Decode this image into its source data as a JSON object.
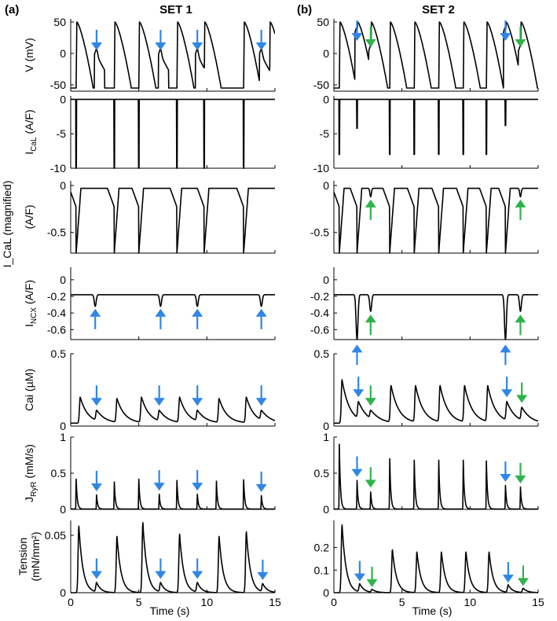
{
  "figure": {
    "panel_a_label": "(a)",
    "panel_b_label": "(b)",
    "set1_title": "SET 1",
    "set2_title": "SET 2",
    "xlabel": "Time (s)",
    "shared_ylabel": "I_CaL (magnified)",
    "colors": {
      "trace": "#000000",
      "blue_arrow": "#2f86e6",
      "green_arrow": "#2db34a"
    }
  },
  "chart_data": [
    {
      "type": "line",
      "column": "SET 1",
      "row": 1,
      "ylabel": "V (mV)",
      "ylim": [
        -60,
        55
      ],
      "yticks": [
        -50,
        0,
        50
      ],
      "xlim": [
        0,
        15
      ],
      "xticks": [],
      "beats": [
        0.4,
        3.2,
        5.0,
        7.8,
        9.8,
        12.7,
        14.6
      ],
      "markers": [
        {
          "t": 1.9,
          "v": 5,
          "color": "blue",
          "dir": "down"
        },
        {
          "t": 6.6,
          "v": 5,
          "color": "blue",
          "dir": "down"
        },
        {
          "t": 9.3,
          "v": 5,
          "color": "blue",
          "dir": "down"
        },
        {
          "t": 14.0,
          "v": 5,
          "color": "blue",
          "dir": "down"
        }
      ]
    },
    {
      "type": "line",
      "column": "SET 1",
      "row": 2,
      "ylabel": "I_CaL (A/F)",
      "ylim": [
        -10,
        0.5
      ],
      "yticks": [
        -10,
        -5,
        0
      ],
      "xlim": [
        0,
        15
      ],
      "xticks": [],
      "spikes": [
        {
          "t": 0.4,
          "v": -10
        },
        {
          "t": 3.2,
          "v": -10
        },
        {
          "t": 5.0,
          "v": -10
        },
        {
          "t": 7.8,
          "v": -10
        },
        {
          "t": 9.8,
          "v": -10
        },
        {
          "t": 12.7,
          "v": -10
        }
      ]
    },
    {
      "type": "line",
      "column": "SET 1",
      "row": 3,
      "ylabel": "(A/F)",
      "ylim": [
        -0.72,
        0.05
      ],
      "yticks": [
        -0.5,
        0
      ],
      "xlim": [
        0,
        15
      ],
      "xticks": [],
      "beats": [
        0.4,
        3.2,
        5.0,
        7.8,
        9.8,
        12.7
      ]
    },
    {
      "type": "line",
      "column": "SET 1",
      "row": 4,
      "ylabel": "I_NCX (A/F)",
      "ylim": [
        -0.72,
        0.15
      ],
      "yticks": [
        -0.6,
        -0.4,
        -0.2,
        0
      ],
      "xlim": [
        0,
        15
      ],
      "xticks": [],
      "beats": [
        0.4,
        3.2,
        5.0,
        7.8,
        9.8,
        12.7
      ],
      "dips": [
        {
          "t": 1.8,
          "v": -0.32
        },
        {
          "t": 6.6,
          "v": -0.32
        },
        {
          "t": 9.3,
          "v": -0.32
        },
        {
          "t": 14.0,
          "v": -0.32
        }
      ],
      "markers": [
        {
          "t": 1.8,
          "v": -0.35,
          "color": "blue",
          "dir": "up"
        },
        {
          "t": 6.6,
          "v": -0.35,
          "color": "blue",
          "dir": "up"
        },
        {
          "t": 9.3,
          "v": -0.35,
          "color": "blue",
          "dir": "up"
        },
        {
          "t": 14.0,
          "v": -0.35,
          "color": "blue",
          "dir": "up"
        }
      ]
    },
    {
      "type": "line",
      "column": "SET 1",
      "row": 5,
      "ylabel": "Cai (µM)",
      "ylim": [
        0,
        0.5
      ],
      "yticks": [
        0,
        0.5
      ],
      "xlim": [
        0,
        15
      ],
      "xticks": [],
      "peaks": [
        {
          "t": 0.7,
          "v": 0.2
        },
        {
          "t": 1.9,
          "v": 0.11
        },
        {
          "t": 3.4,
          "v": 0.19
        },
        {
          "t": 5.2,
          "v": 0.2
        },
        {
          "t": 6.5,
          "v": 0.11
        },
        {
          "t": 8.0,
          "v": 0.2
        },
        {
          "t": 9.3,
          "v": 0.11
        },
        {
          "t": 10.9,
          "v": 0.19
        },
        {
          "t": 12.9,
          "v": 0.2
        },
        {
          "t": 14.0,
          "v": 0.11
        }
      ],
      "markers": [
        {
          "t": 1.9,
          "v": 0.14,
          "color": "blue",
          "dir": "down"
        },
        {
          "t": 6.5,
          "v": 0.14,
          "color": "blue",
          "dir": "down"
        },
        {
          "t": 9.3,
          "v": 0.14,
          "color": "blue",
          "dir": "down"
        },
        {
          "t": 14.0,
          "v": 0.14,
          "color": "blue",
          "dir": "down"
        }
      ]
    },
    {
      "type": "line",
      "column": "SET 1",
      "row": 6,
      "ylabel": "J_RyR (mM/s)",
      "ylim": [
        0,
        1
      ],
      "yticks": [
        0,
        0.5,
        1
      ],
      "xlim": [
        0,
        15
      ],
      "xticks": [],
      "peaks": [
        {
          "t": 0.4,
          "v": 0.42
        },
        {
          "t": 1.9,
          "v": 0.2
        },
        {
          "t": 3.2,
          "v": 0.38
        },
        {
          "t": 5.0,
          "v": 0.42
        },
        {
          "t": 6.5,
          "v": 0.21
        },
        {
          "t": 7.8,
          "v": 0.4
        },
        {
          "t": 9.3,
          "v": 0.21
        },
        {
          "t": 10.7,
          "v": 0.39
        },
        {
          "t": 12.7,
          "v": 0.41
        },
        {
          "t": 14.0,
          "v": 0.19
        }
      ],
      "markers": [
        {
          "t": 1.9,
          "v": 0.25,
          "color": "blue",
          "dir": "down"
        },
        {
          "t": 6.5,
          "v": 0.26,
          "color": "blue",
          "dir": "down"
        },
        {
          "t": 9.3,
          "v": 0.26,
          "color": "blue",
          "dir": "down"
        },
        {
          "t": 14.0,
          "v": 0.24,
          "color": "blue",
          "dir": "down"
        }
      ]
    },
    {
      "type": "line",
      "column": "SET 1",
      "row": 7,
      "ylabel": "Tension (mN/mm²)",
      "ylim": [
        0,
        0.063
      ],
      "yticks": [
        0,
        0.05
      ],
      "xlim": [
        0,
        15
      ],
      "xticks": [
        0,
        5,
        10,
        15
      ],
      "xlabel": "Time (s)",
      "peaks": [
        {
          "t": 0.6,
          "v": 0.058
        },
        {
          "t": 1.9,
          "v": 0.009
        },
        {
          "t": 3.4,
          "v": 0.049
        },
        {
          "t": 5.3,
          "v": 0.061
        },
        {
          "t": 6.6,
          "v": 0.009
        },
        {
          "t": 8.0,
          "v": 0.051
        },
        {
          "t": 9.3,
          "v": 0.009
        },
        {
          "t": 10.9,
          "v": 0.049
        },
        {
          "t": 12.9,
          "v": 0.053
        },
        {
          "t": 14.1,
          "v": 0.008
        }
      ],
      "markers": [
        {
          "t": 1.9,
          "v": 0.012,
          "color": "blue",
          "dir": "down"
        },
        {
          "t": 6.6,
          "v": 0.012,
          "color": "blue",
          "dir": "down"
        },
        {
          "t": 9.3,
          "v": 0.012,
          "color": "blue",
          "dir": "down"
        },
        {
          "t": 14.1,
          "v": 0.011,
          "color": "blue",
          "dir": "down"
        }
      ]
    },
    {
      "type": "line",
      "column": "SET 2",
      "row": 1,
      "ylabel": "",
      "ylim": [
        -60,
        55
      ],
      "yticks": [
        -50,
        0,
        50
      ],
      "xlim": [
        0,
        15
      ],
      "xticks": [],
      "beats": [
        0.4,
        1.7,
        2.7,
        4.1,
        5.9,
        7.7,
        9.5,
        11.2,
        12.6,
        13.7
      ],
      "markers": [
        {
          "t": 1.7,
          "v": 40,
          "color": "blue",
          "dir": "down"
        },
        {
          "t": 2.7,
          "v": 10,
          "color": "green",
          "dir": "down"
        },
        {
          "t": 12.6,
          "v": 40,
          "color": "blue",
          "dir": "down"
        },
        {
          "t": 13.7,
          "v": 10,
          "color": "green",
          "dir": "down"
        }
      ]
    },
    {
      "type": "line",
      "column": "SET 2",
      "row": 2,
      "ylabel": "",
      "ylim": [
        -10,
        0.5
      ],
      "yticks": [
        -10,
        -5,
        0
      ],
      "xlim": [
        0,
        15
      ],
      "xticks": [],
      "spikes": [
        {
          "t": 0.4,
          "v": -8
        },
        {
          "t": 1.7,
          "v": -4.2
        },
        {
          "t": 4.1,
          "v": -8
        },
        {
          "t": 5.9,
          "v": -8
        },
        {
          "t": 7.7,
          "v": -8
        },
        {
          "t": 9.5,
          "v": -8
        },
        {
          "t": 11.2,
          "v": -8
        },
        {
          "t": 12.6,
          "v": -3.8
        }
      ]
    },
    {
      "type": "line",
      "column": "SET 2",
      "row": 3,
      "ylabel": "",
      "ylim": [
        -0.72,
        0.05
      ],
      "yticks": [
        -0.5,
        0
      ],
      "xlim": [
        0,
        15
      ],
      "xticks": [],
      "beats": [
        0.4,
        1.7,
        4.1,
        5.9,
        7.7,
        9.5,
        11.2,
        12.6
      ],
      "dips": [
        {
          "t": 2.7,
          "v": -0.12
        },
        {
          "t": 13.7,
          "v": -0.12
        }
      ],
      "markers": [
        {
          "t": 2.7,
          "v": -0.15,
          "color": "green",
          "dir": "up"
        },
        {
          "t": 13.7,
          "v": -0.15,
          "color": "green",
          "dir": "up"
        }
      ]
    },
    {
      "type": "line",
      "column": "SET 2",
      "row": 4,
      "ylabel": "",
      "ylim": [
        -0.72,
        0.15
      ],
      "yticks": [
        -0.6,
        -0.4,
        -0.2,
        0
      ],
      "xlim": [
        0,
        15
      ],
      "xticks": [],
      "beats": [
        0.4,
        4.1,
        5.9,
        7.7,
        9.5,
        11.2
      ],
      "dips": [
        {
          "t": 1.7,
          "v": -0.72
        },
        {
          "t": 2.7,
          "v": -0.38
        },
        {
          "t": 12.6,
          "v": -0.72
        },
        {
          "t": 13.7,
          "v": -0.38
        }
      ],
      "markers": [
        {
          "t": 1.7,
          "v": -0.78,
          "color": "blue",
          "dir": "up"
        },
        {
          "t": 2.7,
          "v": -0.42,
          "color": "green",
          "dir": "up"
        },
        {
          "t": 12.6,
          "v": -0.78,
          "color": "blue",
          "dir": "up"
        },
        {
          "t": 13.7,
          "v": -0.42,
          "color": "green",
          "dir": "up"
        }
      ]
    },
    {
      "type": "line",
      "column": "SET 2",
      "row": 5,
      "ylabel": "",
      "ylim": [
        0,
        0.5
      ],
      "yticks": [
        0,
        0.5
      ],
      "xlim": [
        0,
        15
      ],
      "xticks": [],
      "peaks": [
        {
          "t": 0.6,
          "v": 0.32
        },
        {
          "t": 1.8,
          "v": 0.17
        },
        {
          "t": 2.7,
          "v": 0.11
        },
        {
          "t": 4.2,
          "v": 0.28
        },
        {
          "t": 6.0,
          "v": 0.28
        },
        {
          "t": 7.8,
          "v": 0.28
        },
        {
          "t": 9.6,
          "v": 0.28
        },
        {
          "t": 11.3,
          "v": 0.28
        },
        {
          "t": 12.7,
          "v": 0.17
        },
        {
          "t": 13.8,
          "v": 0.13
        }
      ],
      "markers": [
        {
          "t": 1.8,
          "v": 0.2,
          "color": "blue",
          "dir": "down"
        },
        {
          "t": 2.7,
          "v": 0.14,
          "color": "green",
          "dir": "down"
        },
        {
          "t": 12.7,
          "v": 0.2,
          "color": "blue",
          "dir": "down"
        },
        {
          "t": 13.8,
          "v": 0.16,
          "color": "green",
          "dir": "down"
        }
      ]
    },
    {
      "type": "line",
      "column": "SET 2",
      "row": 6,
      "ylabel": "",
      "ylim": [
        0,
        1
      ],
      "yticks": [
        0,
        0.5,
        1
      ],
      "xlim": [
        0,
        15
      ],
      "xticks": [],
      "peaks": [
        {
          "t": 0.4,
          "v": 0.9
        },
        {
          "t": 1.7,
          "v": 0.4
        },
        {
          "t": 2.7,
          "v": 0.24
        },
        {
          "t": 4.1,
          "v": 0.7
        },
        {
          "t": 5.9,
          "v": 0.68
        },
        {
          "t": 7.7,
          "v": 0.68
        },
        {
          "t": 9.5,
          "v": 0.68
        },
        {
          "t": 11.2,
          "v": 0.67
        },
        {
          "t": 12.6,
          "v": 0.33
        },
        {
          "t": 13.7,
          "v": 0.31
        }
      ],
      "markers": [
        {
          "t": 1.7,
          "v": 0.45,
          "color": "blue",
          "dir": "down"
        },
        {
          "t": 2.7,
          "v": 0.3,
          "color": "green",
          "dir": "down"
        },
        {
          "t": 12.6,
          "v": 0.38,
          "color": "blue",
          "dir": "down"
        },
        {
          "t": 13.7,
          "v": 0.36,
          "color": "green",
          "dir": "down"
        }
      ]
    },
    {
      "type": "line",
      "column": "SET 2",
      "row": 7,
      "ylabel": "",
      "ylim": [
        0,
        0.32
      ],
      "yticks": [
        0,
        0.1,
        0.2
      ],
      "xlim": [
        0,
        15
      ],
      "xticks": [
        0,
        5,
        10,
        15
      ],
      "xlabel": "Time (s)",
      "peaks": [
        {
          "t": 0.6,
          "v": 0.3
        },
        {
          "t": 1.9,
          "v": 0.04
        },
        {
          "t": 2.8,
          "v": 0.015
        },
        {
          "t": 4.3,
          "v": 0.19
        },
        {
          "t": 6.1,
          "v": 0.18
        },
        {
          "t": 7.9,
          "v": 0.18
        },
        {
          "t": 9.7,
          "v": 0.18
        },
        {
          "t": 11.4,
          "v": 0.18
        },
        {
          "t": 12.8,
          "v": 0.035
        },
        {
          "t": 13.9,
          "v": 0.02
        }
      ],
      "markers": [
        {
          "t": 1.9,
          "v": 0.05,
          "color": "blue",
          "dir": "down"
        },
        {
          "t": 2.8,
          "v": 0.025,
          "color": "green",
          "dir": "down"
        },
        {
          "t": 12.8,
          "v": 0.045,
          "color": "blue",
          "dir": "down"
        },
        {
          "t": 13.9,
          "v": 0.03,
          "color": "green",
          "dir": "down"
        }
      ]
    }
  ]
}
